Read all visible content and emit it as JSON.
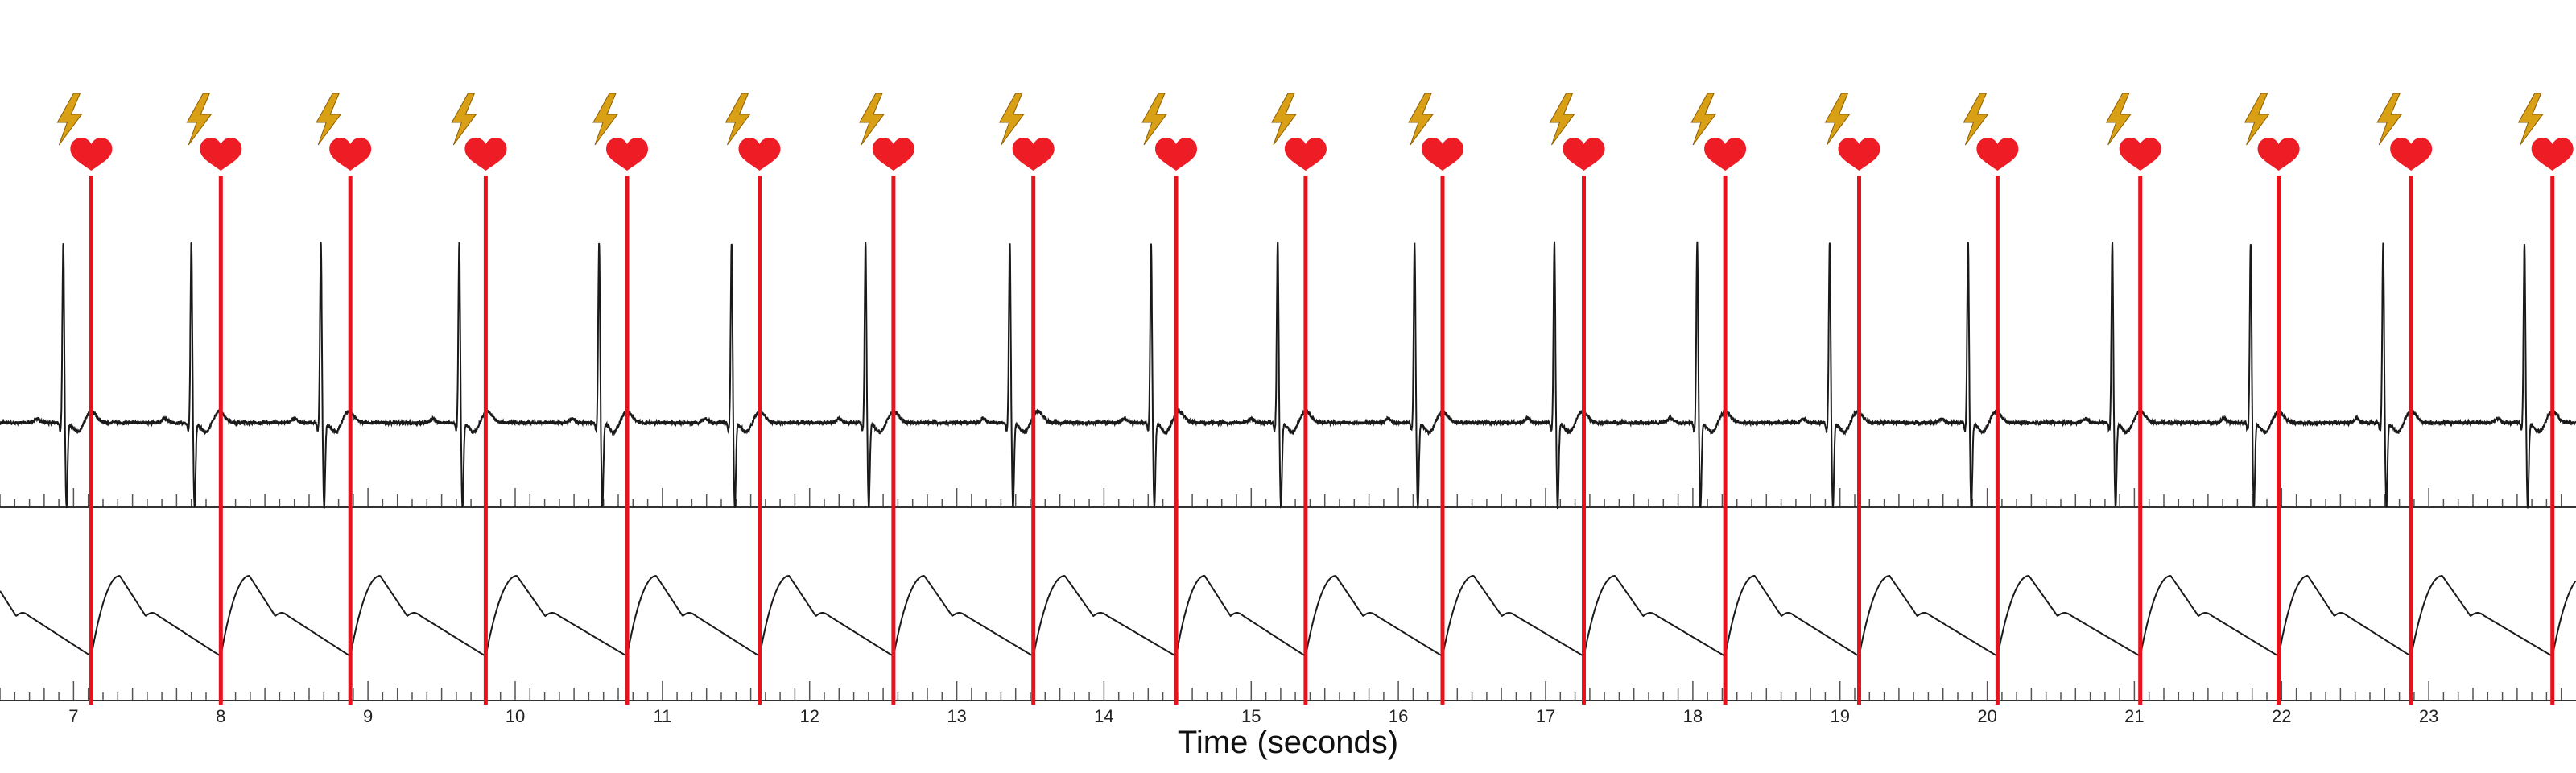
{
  "chart_data": {
    "type": "line",
    "title": "",
    "xlabel": "Time (seconds)",
    "ylabel": "",
    "xlim": [
      6.5,
      24.0
    ],
    "grid": false,
    "legend": "none",
    "x_ticks": [
      7,
      8,
      9,
      10,
      11,
      12,
      13,
      14,
      15,
      16,
      17,
      18,
      19,
      20,
      21,
      22,
      23
    ],
    "series": [
      {
        "name": "",
        "trace": "ECG"
      },
      {
        "name": "",
        "trace": "pulse waveform"
      }
    ],
    "r_peak_times": [
      6.93,
      7.8,
      8.68,
      9.62,
      10.57,
      11.47,
      12.38,
      13.36,
      14.32,
      15.18,
      16.11,
      17.06,
      18.03,
      18.93,
      19.87,
      20.85,
      21.79,
      22.69,
      23.65
    ],
    "event_times": [
      7.12,
      8.0,
      8.88,
      9.8,
      10.76,
      11.66,
      12.57,
      13.52,
      14.49,
      15.37,
      16.3,
      17.26,
      18.22,
      19.13,
      20.07,
      21.04,
      21.98,
      22.88,
      23.84
    ],
    "colors": {
      "event_line": "#e8121c",
      "heart": "#ee1c25",
      "bolt": "#d9a016",
      "trace": "#1a1a1a",
      "axis": "#333333"
    },
    "icons": {
      "event": "heart-icon",
      "pacing": "lightning-bolt-icon"
    }
  }
}
